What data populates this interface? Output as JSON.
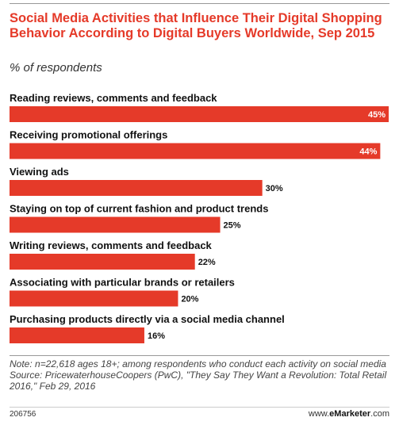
{
  "chart_data": {
    "type": "bar",
    "orientation": "horizontal",
    "title": "Social Media Activities that Influence Their Digital Shopping Behavior According to Digital Buyers Worldwide, Sep 2015",
    "subtitle": "% of respondents",
    "categories": [
      "Reading reviews, comments and feedback",
      "Receiving promotional offerings",
      "Viewing ads",
      "Staying on top of current fashion and product trends",
      "Writing reviews, comments and feedback",
      "Associating with particular brands or retailers",
      "Purchasing products directly via a social media channel"
    ],
    "values": [
      45,
      44,
      30,
      25,
      22,
      20,
      16
    ],
    "value_labels": [
      "45%",
      "44%",
      "30%",
      "25%",
      "22%",
      "20%",
      "16%"
    ],
    "xlim": [
      0,
      45
    ],
    "bar_color": "#e53a29",
    "grid": false,
    "legend": "none"
  },
  "note": "Note: n=22,618 ages 18+; among respondents who conduct each activity on social media",
  "source": "Source: PricewaterhouseCoopers (PwC), \"They Say They Want a Revolution: Total Retail 2016,\" Feb 29, 2016",
  "footer": {
    "chart_id": "206756",
    "brand_prefix": "www.",
    "brand_name": "eMarketer",
    "brand_suffix": ".com"
  }
}
